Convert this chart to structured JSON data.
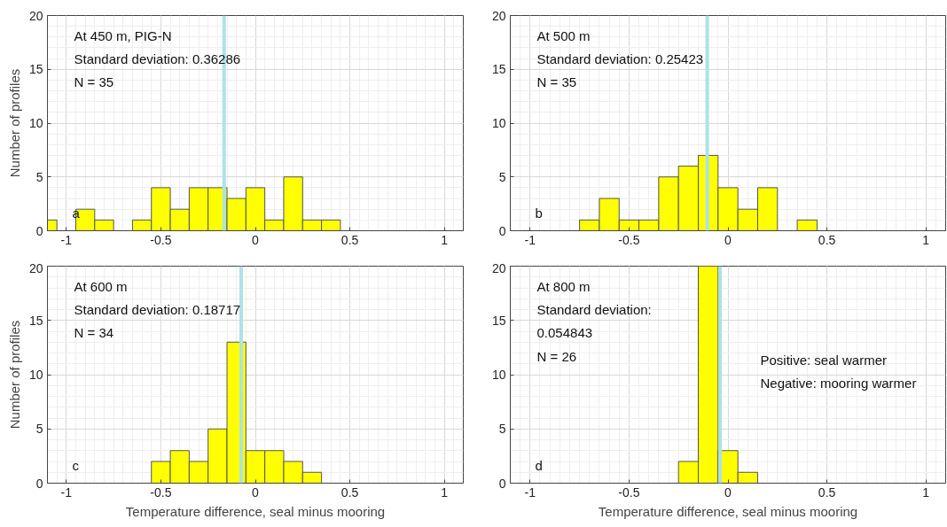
{
  "chart_data": [
    {
      "type": "histogram",
      "ylabel": "Number of profiles",
      "bins": [
        -1.1,
        -1.05,
        -0.95,
        -0.85,
        -0.75,
        -0.65,
        -0.55,
        -0.45,
        -0.35,
        -0.25,
        -0.15,
        -0.05,
        0.05,
        0.15,
        0.25,
        0.35,
        0.45
      ],
      "values": [
        1,
        0,
        2,
        1,
        0,
        1,
        4,
        2,
        4,
        4,
        3,
        4,
        1,
        5,
        1,
        1
      ],
      "color": "#ffff00",
      "xlim": [
        -1.1,
        1.1
      ],
      "xticks": [
        -1,
        -0.5,
        0,
        0.5,
        1
      ],
      "ylim": [
        0,
        20
      ],
      "yticks": [
        0,
        5,
        10,
        15,
        20
      ],
      "grid": true,
      "ref_lines": [
        {
          "axis": "x",
          "value": -0.165,
          "color": "#ace3e6"
        }
      ],
      "annotations": [
        "At 450 m, PIG-N\nStandard deviation: 0.36286\nN = 35",
        "a"
      ]
    },
    {
      "type": "histogram",
      "bins": [
        -0.75,
        -0.65,
        -0.55,
        -0.45,
        -0.35,
        -0.25,
        -0.15,
        -0.05,
        0.05,
        0.15,
        0.25,
        0.35,
        0.45
      ],
      "values": [
        1,
        3,
        1,
        1,
        5,
        6,
        7,
        4,
        2,
        4,
        0,
        1
      ],
      "color": "#ffff00",
      "xlim": [
        -1.1,
        1.1
      ],
      "xticks": [
        -1,
        -0.5,
        0,
        0.5,
        1
      ],
      "ylim": [
        0,
        20
      ],
      "yticks": [
        0,
        5,
        10,
        15,
        20
      ],
      "grid": true,
      "ref_lines": [
        {
          "axis": "x",
          "value": -0.105,
          "color": "#ace3e6"
        }
      ],
      "annotations": [
        "At 500 m\nStandard deviation: 0.25423\nN = 35",
        "b"
      ]
    },
    {
      "type": "histogram",
      "xlabel": "Temperature difference, seal minus mooring",
      "ylabel": "Number of profiles",
      "bins": [
        -0.55,
        -0.45,
        -0.35,
        -0.25,
        -0.15,
        -0.05,
        0.05,
        0.15,
        0.25,
        0.35
      ],
      "values": [
        2,
        3,
        2,
        5,
        13,
        3,
        3,
        2,
        1
      ],
      "color": "#ffff00",
      "xlim": [
        -1.1,
        1.1
      ],
      "xticks": [
        -1,
        -0.5,
        0,
        0.5,
        1
      ],
      "ylim": [
        0,
        20
      ],
      "yticks": [
        0,
        5,
        10,
        15,
        20
      ],
      "grid": true,
      "ref_lines": [
        {
          "axis": "x",
          "value": -0.075,
          "color": "#ace3e6"
        }
      ],
      "annotations": [
        "At 600 m\nStandard deviation: 0.18717\nN = 34",
        "c"
      ]
    },
    {
      "type": "histogram",
      "xlabel": "Temperature difference, seal minus mooring",
      "bins": [
        -0.25,
        -0.15,
        -0.05,
        0.05,
        0.15
      ],
      "values": [
        2,
        20,
        3,
        1
      ],
      "color": "#ffff00",
      "xlim": [
        -1.1,
        1.1
      ],
      "xticks": [
        -1,
        -0.5,
        0,
        0.5,
        1
      ],
      "ylim": [
        0,
        20
      ],
      "yticks": [
        0,
        5,
        10,
        15,
        20
      ],
      "grid": true,
      "ref_lines": [
        {
          "axis": "x",
          "value": -0.04,
          "color": "#ace3e6"
        }
      ],
      "annotations": [
        "At 800 m\nStandard deviation:\n0.054843\nN = 26",
        "Positive: seal warmer\nNegative: mooring warmer",
        "d"
      ]
    }
  ]
}
